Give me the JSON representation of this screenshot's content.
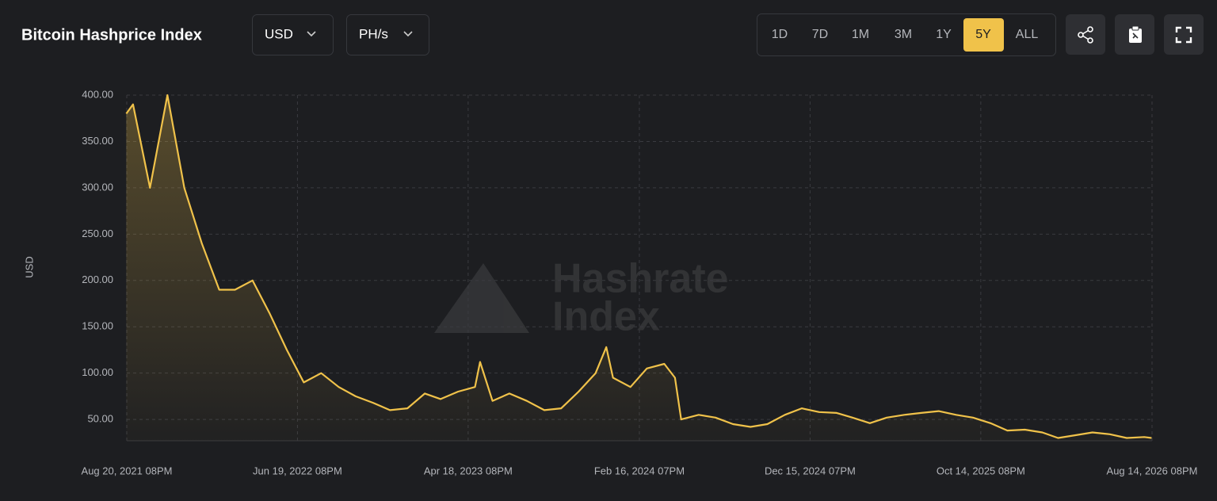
{
  "header": {
    "title": "Bitcoin Hashprice Index",
    "currency": "USD",
    "unit": "PH/s",
    "ranges": [
      "1D",
      "7D",
      "1M",
      "3M",
      "1Y",
      "5Y",
      "ALL"
    ],
    "active_range": "5Y"
  },
  "watermark": [
    "Hashrate",
    "Index"
  ],
  "chart_data": {
    "type": "line",
    "y_label": "USD",
    "grid": true,
    "x": [
      "2021-08-20",
      "2021-09-01",
      "2021-10-01",
      "2021-11-01",
      "2021-12-01",
      "2022-01-01",
      "2022-02-01",
      "2022-03-01",
      "2022-04-01",
      "2022-05-01",
      "2022-06-01",
      "2022-07-01",
      "2022-08-01",
      "2022-09-01",
      "2022-10-01",
      "2022-11-01",
      "2022-12-01",
      "2023-01-01",
      "2023-02-01",
      "2023-03-01",
      "2023-04-01",
      "2023-05-01",
      "2023-05-10",
      "2023-06-01",
      "2023-07-01",
      "2023-08-01",
      "2023-09-01",
      "2023-10-01",
      "2023-11-01",
      "2023-12-01",
      "2023-12-20",
      "2024-01-01",
      "2024-02-01",
      "2024-03-01",
      "2024-04-01",
      "2024-04-20",
      "2024-05-01",
      "2024-06-01",
      "2024-07-01",
      "2024-08-01",
      "2024-09-01",
      "2024-10-01",
      "2024-11-01",
      "2024-12-01",
      "2025-01-01",
      "2025-02-01",
      "2025-03-01",
      "2025-04-01",
      "2025-05-01",
      "2025-06-01",
      "2025-07-01",
      "2025-08-01",
      "2025-09-01",
      "2025-10-01",
      "2025-11-01",
      "2025-12-01",
      "2026-01-01",
      "2026-02-01",
      "2026-03-01",
      "2026-04-01",
      "2026-05-01",
      "2026-06-01",
      "2026-07-01",
      "2026-08-01",
      "2026-08-14"
    ],
    "series": [
      {
        "name": "USD",
        "color": "#f0c24a",
        "values": [
          380,
          390,
          300,
          400,
          300,
          240,
          190,
          190,
          200,
          165,
          125,
          90,
          100,
          85,
          75,
          68,
          60,
          62,
          78,
          72,
          80,
          85,
          112,
          70,
          78,
          70,
          60,
          62,
          80,
          100,
          128,
          95,
          85,
          105,
          110,
          95,
          50,
          55,
          52,
          45,
          42,
          45,
          55,
          62,
          58,
          57,
          52,
          46,
          52,
          55,
          57,
          59,
          55,
          52,
          46,
          38,
          39,
          36,
          30,
          33,
          36,
          34,
          30,
          31,
          30
        ]
      }
    ],
    "xlim": [
      "2021-08-20T20:00",
      "2026-08-14T20:00"
    ],
    "xticks": [
      {
        "value": "2021-08-20T20:00",
        "label": "Aug 20, 2021 08PM"
      },
      {
        "value": "2022-06-19T20:00",
        "label": "Jun 19, 2022 08PM"
      },
      {
        "value": "2023-04-18T20:00",
        "label": "Apr 18, 2023 08PM"
      },
      {
        "value": "2024-02-16T19:00",
        "label": "Feb 16, 2024 07PM"
      },
      {
        "value": "2024-12-15T19:00",
        "label": "Dec 15, 2024 07PM"
      },
      {
        "value": "2025-10-14T20:00",
        "label": "Oct 14, 2025 08PM"
      },
      {
        "value": "2026-08-14T20:00",
        "label": "Aug 14, 2026 08PM"
      }
    ],
    "ylim": [
      27,
      400
    ],
    "yticks": [
      {
        "value": 50,
        "label": "50.00"
      },
      {
        "value": 100,
        "label": "100.00"
      },
      {
        "value": 150,
        "label": "150.00"
      },
      {
        "value": 200,
        "label": "200.00"
      },
      {
        "value": 250,
        "label": "250.00"
      },
      {
        "value": 300,
        "label": "300.00"
      },
      {
        "value": 350,
        "label": "350.00"
      },
      {
        "value": 400,
        "label": "400.00"
      }
    ]
  }
}
